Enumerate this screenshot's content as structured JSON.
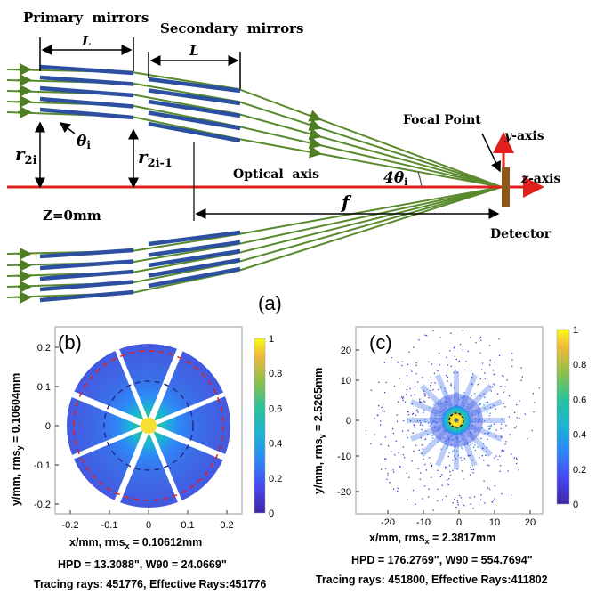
{
  "panel_a": {
    "label": "(a)",
    "primary_mirrors": "Primary  mirrors",
    "secondary_mirrors": "Secondary  mirrors",
    "length_L_primary": "L",
    "length_L_secondary": "L",
    "theta_label": "θ",
    "theta_sub": "i",
    "r2i_label": "r",
    "r2i_sub": "2i",
    "r2i1_label": "r",
    "r2i1_sub": "2i-1",
    "optical_axis": "Optical  axis",
    "four_theta": "4θ",
    "four_theta_sub": "i",
    "f_label": "f",
    "z0": "Z=0mm",
    "focal_point": "Focal Point",
    "y_axis_label": "y",
    "y_axis_suffix": "-axis",
    "z_axis_label": "z",
    "z_axis_suffix": "-axis",
    "detector": "Detector",
    "colors": {
      "mirror": "#2c4fa0",
      "ray": "#5a8a2e",
      "axis": "#e0201c",
      "detector": "#8b5a1a"
    }
  },
  "panel_b": {
    "label": "(b)",
    "x_label": "x/mm, rms",
    "x_sub": "x",
    "x_value": " = 0.10612mm",
    "y_label": "y/mm, rms",
    "y_sub": "y",
    "y_value": " = 0.10604mm",
    "x_ticks": [
      "-0.2",
      "-0.1",
      "0",
      "0.1",
      "0.2"
    ],
    "y_ticks": [
      "0.2",
      "0.1",
      "0",
      "-0.1",
      "-0.2"
    ],
    "colorbar_ticks": [
      "1",
      "0.8",
      "0.6",
      "0.4",
      "0.2",
      "0"
    ],
    "hpd_line": "HPD = 13.3088\", W90 = 24.0669\"",
    "rays_line": "Tracing rays: 451776, Effective Rays:451776"
  },
  "panel_c": {
    "label": "(c)",
    "x_label": "x/mm, rms",
    "x_sub": "x",
    "x_value": " = 2.3817mm",
    "y_label": "y/mm, rms",
    "y_sub": "y",
    "y_value": " = 2.5265mm",
    "x_ticks": [
      "-20",
      "-10",
      "0",
      "10",
      "20"
    ],
    "y_ticks": [
      "20",
      "10",
      "0",
      "-10",
      "-20"
    ],
    "colorbar_ticks": [
      "1",
      "0.8",
      "0.6",
      "0.4",
      "0.2",
      "0"
    ],
    "hpd_line": "HPD = 176.2769\", W90 = 554.7694\"",
    "rays_line": "Tracing rays: 451800, Effective Rays:411802"
  }
}
